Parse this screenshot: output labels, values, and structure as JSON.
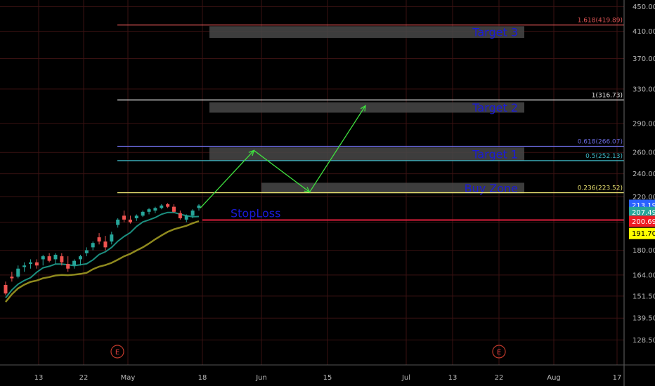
{
  "chart_data": {
    "type": "candlestick",
    "price_axis": {
      "ticks": [
        "450.00",
        "410.00",
        "370.00",
        "330.00",
        "290.00",
        "260.00",
        "240.00",
        "220.00",
        "200.00",
        "180.00",
        "164.00",
        "151.50",
        "139.50",
        "128.50"
      ],
      "range": [
        122,
        454
      ],
      "scale": "log"
    },
    "time_axis": {
      "ticks": [
        "13",
        "22",
        "May",
        "18",
        "Jun",
        "15",
        "Jul",
        "13",
        "22",
        "Aug",
        "17"
      ]
    },
    "fib_levels": [
      {
        "label": "1.618(419.89)",
        "price": 419.89,
        "color": "#e05555"
      },
      {
        "label": "1(316.73)",
        "price": 316.73,
        "color": "#e0e0e0"
      },
      {
        "label": "0.618(266.07)",
        "price": 266.07,
        "color": "#6a6ae0"
      },
      {
        "label": "0.5(252.13)",
        "price": 252.13,
        "color": "#3fb7c4"
      },
      {
        "label": "0.236(223.52)",
        "price": 223.52,
        "color": "#e8e070"
      }
    ],
    "stoploss": {
      "label": "StopLoss",
      "price": 201.7,
      "color": "#e01e3c"
    },
    "zones": [
      {
        "label": "Target 3",
        "top": 418,
        "bottom": 400
      },
      {
        "label": "Target 2",
        "top": 314,
        "bottom": 302
      },
      {
        "label": "Target 1",
        "top": 265,
        "bottom": 252
      },
      {
        "label": "Buy Zone",
        "top": 232,
        "bottom": 223
      }
    ],
    "price_badges": [
      {
        "label": "213.19",
        "bg": "#2962ff",
        "fg": "#ffffff"
      },
      {
        "label": "207.49",
        "bg": "#26a69a",
        "fg": "#ffffff"
      },
      {
        "label": "200.69",
        "bg": "#ef1c24",
        "fg": "#ffffff"
      },
      {
        "label": "191.70",
        "bg": "#ffff00",
        "fg": "#000000"
      }
    ],
    "earnings_markers": [
      "E",
      "E"
    ],
    "colors": {
      "up": "#26a69a",
      "down": "#ef5350",
      "ma_fast": "#1b8f80",
      "ma_slow": "#8f8a1e",
      "arrow": "#3fe03f",
      "grid": "#3a1212",
      "zone": "#484848"
    },
    "candles": [
      {
        "o": 158,
        "h": 160,
        "l": 152,
        "c": 153
      },
      {
        "o": 163,
        "h": 166,
        "l": 160,
        "c": 162
      },
      {
        "o": 163,
        "h": 170,
        "l": 162,
        "c": 168
      },
      {
        "o": 169,
        "h": 172,
        "l": 166,
        "c": 170
      },
      {
        "o": 171,
        "h": 174,
        "l": 168,
        "c": 172
      },
      {
        "o": 172,
        "h": 174,
        "l": 168,
        "c": 170
      },
      {
        "o": 174,
        "h": 177,
        "l": 170,
        "c": 176
      },
      {
        "o": 176,
        "h": 178,
        "l": 172,
        "c": 173
      },
      {
        "o": 174,
        "h": 178,
        "l": 171,
        "c": 177
      },
      {
        "o": 176,
        "h": 178,
        "l": 170,
        "c": 172
      },
      {
        "o": 171,
        "h": 176,
        "l": 166,
        "c": 168
      },
      {
        "o": 170,
        "h": 174,
        "l": 168,
        "c": 173
      },
      {
        "o": 174,
        "h": 177,
        "l": 170,
        "c": 176
      },
      {
        "o": 178,
        "h": 182,
        "l": 176,
        "c": 180
      },
      {
        "o": 182,
        "h": 186,
        "l": 180,
        "c": 185
      },
      {
        "o": 189,
        "h": 192,
        "l": 184,
        "c": 186
      },
      {
        "o": 186,
        "h": 190,
        "l": 180,
        "c": 182
      },
      {
        "o": 186,
        "h": 193,
        "l": 184,
        "c": 191
      },
      {
        "o": 198,
        "h": 203,
        "l": 196,
        "c": 202
      },
      {
        "o": 205,
        "h": 209,
        "l": 200,
        "c": 202
      },
      {
        "o": 202,
        "h": 205,
        "l": 199,
        "c": 200
      },
      {
        "o": 203,
        "h": 206,
        "l": 201,
        "c": 205
      },
      {
        "o": 205,
        "h": 209,
        "l": 204,
        "c": 208
      },
      {
        "o": 208,
        "h": 211,
        "l": 206,
        "c": 210
      },
      {
        "o": 209,
        "h": 212,
        "l": 207,
        "c": 211
      },
      {
        "o": 211,
        "h": 214,
        "l": 210,
        "c": 213
      },
      {
        "o": 214,
        "h": 215,
        "l": 211,
        "c": 212
      },
      {
        "o": 212,
        "h": 214,
        "l": 207,
        "c": 208
      },
      {
        "o": 207,
        "h": 209,
        "l": 202,
        "c": 203
      },
      {
        "o": 202,
        "h": 206,
        "l": 200,
        "c": 205
      },
      {
        "o": 205,
        "h": 210,
        "l": 203,
        "c": 209
      },
      {
        "o": 211,
        "h": 214,
        "l": 209,
        "c": 213
      }
    ],
    "projection": [
      {
        "x_frac": 0.0,
        "price": 211
      },
      {
        "x_frac": 0.25,
        "price": 262
      },
      {
        "x_frac": 0.51,
        "price": 224
      },
      {
        "x_frac": 0.77,
        "price": 310
      }
    ]
  }
}
